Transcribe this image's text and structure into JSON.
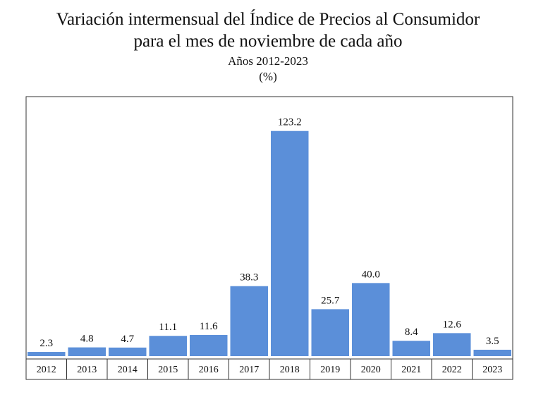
{
  "chart_data": {
    "type": "bar",
    "title": "Variación intermensual del Índice de Precios al Consumidor",
    "subtitle": "para el mes de noviembre de cada año",
    "period": "Años 2012-2023",
    "unit": "(%)",
    "categories": [
      "2012",
      "2013",
      "2014",
      "2015",
      "2016",
      "2017",
      "2018",
      "2019",
      "2020",
      "2021",
      "2022",
      "2023"
    ],
    "values": [
      2.3,
      4.8,
      4.7,
      11.1,
      11.6,
      38.3,
      123.2,
      25.7,
      40.0,
      8.4,
      12.6,
      3.5
    ],
    "value_labels": [
      "2.3",
      "4.8",
      "4.7",
      "11.1",
      "11.6",
      "38.3",
      "123.2",
      "25.7",
      "40.0",
      "8.4",
      "12.6",
      "3.5"
    ],
    "xlabel": "",
    "ylabel": "",
    "ylim": [
      0,
      142
    ],
    "bar_color": "#5B8FD9",
    "grid": false,
    "legend": "none"
  }
}
